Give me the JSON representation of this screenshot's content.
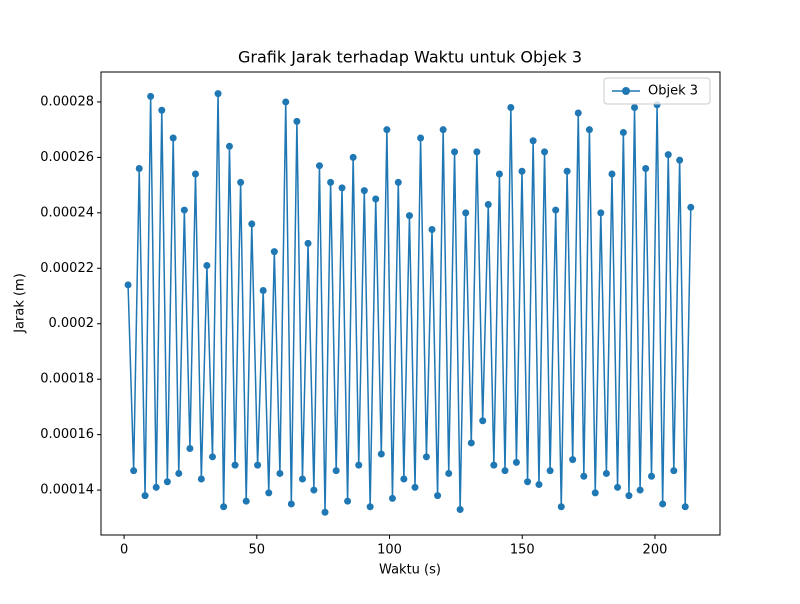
{
  "chart_data": {
    "type": "line",
    "title": "Grafik Jarak terhadap Waktu untuk Objek 3",
    "x_label": "Waktu (s)",
    "y_label": "Jarak (m)",
    "x": [
      1.5,
      3.6,
      5.7,
      7.9,
      10.0,
      12.1,
      14.2,
      16.3,
      18.5,
      20.6,
      22.7,
      24.8,
      26.9,
      29.1,
      31.2,
      33.3,
      35.4,
      37.5,
      39.7,
      41.8,
      43.9,
      46.0,
      48.1,
      50.3,
      52.4,
      54.5,
      56.6,
      58.7,
      60.9,
      63.0,
      65.1,
      67.2,
      69.3,
      71.5,
      73.6,
      75.7,
      77.8,
      79.9,
      82.1,
      84.2,
      86.3,
      88.4,
      90.5,
      92.7,
      94.8,
      96.9,
      99.0,
      101.1,
      103.3,
      105.4,
      107.5,
      109.6,
      111.7,
      113.9,
      116.0,
      118.1,
      120.2,
      122.3,
      124.5,
      126.6,
      128.7,
      130.8,
      132.9,
      135.1,
      137.2,
      139.3,
      141.4,
      143.5,
      145.7,
      147.8,
      149.9,
      152.0,
      154.1,
      156.3,
      158.4,
      160.5,
      162.6,
      164.7,
      166.9,
      169.0,
      171.1,
      173.2,
      175.3,
      177.5,
      179.6,
      181.7,
      183.8,
      185.9,
      188.1,
      190.2,
      192.3,
      194.4,
      196.5,
      198.7,
      200.8,
      202.9,
      205.0,
      207.1,
      209.3,
      211.4,
      213.5
    ],
    "series": [
      {
        "name": "Objek 3",
        "color": "#1f77b4",
        "values": [
          0.000214,
          0.000147,
          0.000256,
          0.000138,
          0.000282,
          0.000141,
          0.000277,
          0.000143,
          0.000267,
          0.000146,
          0.000241,
          0.000155,
          0.000254,
          0.000144,
          0.000221,
          0.000152,
          0.000283,
          0.000134,
          0.000264,
          0.000149,
          0.000251,
          0.000136,
          0.000236,
          0.000149,
          0.000212,
          0.000139,
          0.000226,
          0.000146,
          0.00028,
          0.000135,
          0.000273,
          0.000144,
          0.000229,
          0.00014,
          0.000257,
          0.000132,
          0.000251,
          0.000147,
          0.000249,
          0.000136,
          0.00026,
          0.000149,
          0.000248,
          0.000134,
          0.000245,
          0.000153,
          0.00027,
          0.000137,
          0.000251,
          0.000144,
          0.000239,
          0.000141,
          0.000267,
          0.000152,
          0.000234,
          0.000138,
          0.00027,
          0.000146,
          0.000262,
          0.000133,
          0.00024,
          0.000157,
          0.000262,
          0.000165,
          0.000243,
          0.000149,
          0.000254,
          0.000147,
          0.000278,
          0.00015,
          0.000255,
          0.000143,
          0.000266,
          0.000142,
          0.000262,
          0.000147,
          0.000241,
          0.000134,
          0.000255,
          0.000151,
          0.000276,
          0.000145,
          0.00027,
          0.000139,
          0.00024,
          0.000146,
          0.000254,
          0.000141,
          0.000269,
          0.000138,
          0.000278,
          0.00014,
          0.000256,
          0.000145,
          0.000279,
          0.000135,
          0.000261,
          0.000147,
          0.000259,
          0.000134,
          0.000242
        ]
      }
    ],
    "xlim": [
      -8.7,
      224.5
    ],
    "ylim": [
      0.0001238,
      0.0002908
    ],
    "xticks": [
      0,
      50,
      100,
      150,
      200
    ],
    "yticks": [
      0.00014,
      0.00016,
      0.00018,
      0.0002,
      0.00022,
      0.00024,
      0.00026,
      0.00028
    ],
    "legend": "upper right"
  }
}
